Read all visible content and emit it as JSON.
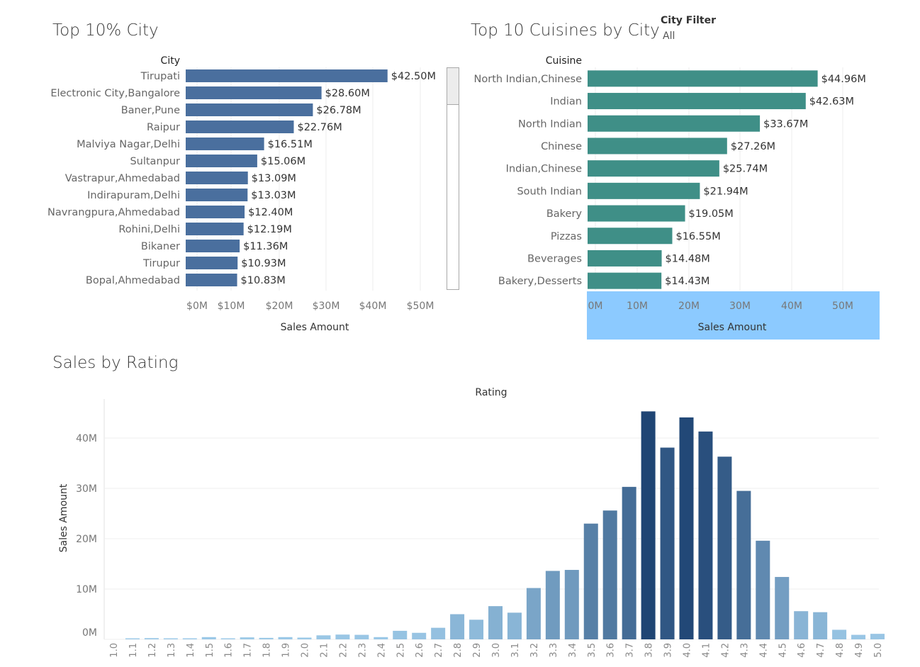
{
  "dashboard": {
    "left_title": "Top 10% City",
    "right_title": "Top 10 Cuisines by City",
    "bottom_title": "Sales by Rating",
    "filter": {
      "label": "City Filter",
      "value": "All"
    }
  },
  "colors": {
    "city_bar": "#4a6f9e",
    "cuisine_bar": "#3f8f87",
    "axis_highlight": "#8ccaff",
    "rating_light": "#9ecbe9",
    "rating_dark": "#1f4574"
  },
  "chart_data": [
    {
      "type": "bar",
      "orientation": "horizontal",
      "title": "Top 10% City",
      "category_header": "City",
      "xlabel": "Sales Amount",
      "xlim": [
        0,
        55
      ],
      "x_ticks": [
        "$0M",
        "$10M",
        "$20M",
        "$30M",
        "$40M",
        "$50M"
      ],
      "categories": [
        "Tirupati",
        "Electronic City,Bangalore",
        "Baner,Pune",
        "Raipur",
        "Malviya Nagar,Delhi",
        "Sultanpur",
        "Vastrapur,Ahmedabad",
        "Indirapuram,Delhi",
        "Navrangpura,Ahmedabad",
        "Rohini,Delhi",
        "Bikaner",
        "Tirupur",
        "Bopal,Ahmedabad"
      ],
      "values": [
        42.5,
        28.6,
        26.78,
        22.76,
        16.51,
        15.06,
        13.09,
        13.03,
        12.4,
        12.19,
        11.36,
        10.93,
        10.83
      ],
      "data_labels": [
        "$42.50M",
        "$28.60M",
        "$26.78M",
        "$22.76M",
        "$16.51M",
        "$15.06M",
        "$13.09M",
        "$13.03M",
        "$12.40M",
        "$12.19M",
        "$11.36M",
        "$10.93M",
        "$10.83M"
      ]
    },
    {
      "type": "bar",
      "orientation": "horizontal",
      "title": "Top 10 Cuisines by City",
      "category_header": "Cuisine",
      "xlabel": "Sales Amount",
      "xlim": [
        0,
        57
      ],
      "x_ticks": [
        "0M",
        "10M",
        "20M",
        "30M",
        "40M",
        "50M"
      ],
      "categories": [
        "North Indian,Chinese",
        "Indian",
        "North Indian",
        "Chinese",
        "Indian,Chinese",
        "South Indian",
        "Bakery",
        "Pizzas",
        "Beverages",
        "Bakery,Desserts"
      ],
      "values": [
        44.96,
        42.63,
        33.67,
        27.26,
        25.74,
        21.94,
        19.05,
        16.55,
        14.48,
        14.43
      ],
      "data_labels": [
        "$44.96M",
        "$42.63M",
        "$33.67M",
        "$27.26M",
        "$25.74M",
        "$21.94M",
        "$19.05M",
        "$16.55M",
        "$14.48M",
        "$14.43M"
      ]
    },
    {
      "type": "bar",
      "title": "Sales by Rating",
      "xlabel": "Rating",
      "ylabel": "Sales Amount",
      "ylim": [
        0,
        46
      ],
      "y_ticks": [
        "0M",
        "10M",
        "20M",
        "30M",
        "40M"
      ],
      "grid": true,
      "categories": [
        "1.0",
        "1.1",
        "1.2",
        "1.3",
        "1.4",
        "1.5",
        "1.6",
        "1.7",
        "1.8",
        "1.9",
        "2.0",
        "2.1",
        "2.2",
        "2.3",
        "2.4",
        "2.5",
        "2.6",
        "2.7",
        "2.8",
        "2.9",
        "3.0",
        "3.1",
        "3.2",
        "3.3",
        "3.4",
        "3.5",
        "3.6",
        "3.7",
        "3.8",
        "3.9",
        "4.0",
        "4.1",
        "4.2",
        "4.3",
        "4.4",
        "4.5",
        "4.6",
        "4.7",
        "4.8",
        "4.9",
        "5.0"
      ],
      "values": [
        0.0,
        0.05,
        0.25,
        0.05,
        0.1,
        0.45,
        0.05,
        0.4,
        0.3,
        0.45,
        0.35,
        0.8,
        0.95,
        0.9,
        0.45,
        1.7,
        1.3,
        2.3,
        5.0,
        3.9,
        6.6,
        5.3,
        10.2,
        13.6,
        13.8,
        23.0,
        25.6,
        30.3,
        45.3,
        38.1,
        44.1,
        41.3,
        36.3,
        29.5,
        19.6,
        12.4,
        5.6,
        5.4,
        1.9,
        0.9,
        1.1
      ]
    }
  ]
}
